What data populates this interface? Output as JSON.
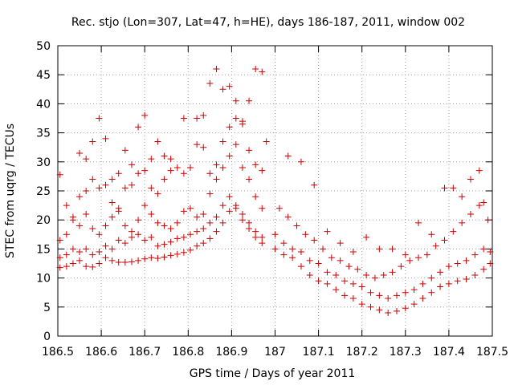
{
  "chart_data": {
    "type": "scatter",
    "title": "Rec. stjo (Lon=307, Lat=47, h=HE), days 186-187, 2011, window 002",
    "xlabel": "GPS time / Days of year 2011",
    "ylabel": "STEC from uqrg / TECUs",
    "xlim": [
      186.5,
      187.5
    ],
    "ylim": [
      0,
      50
    ],
    "xticks": [
      "186.5",
      "186.6",
      "186.7",
      "186.8",
      "186.9",
      "187",
      "187.1",
      "187.2",
      "187.3",
      "187.4",
      "187.5"
    ],
    "yticks": [
      "0",
      "5",
      "10",
      "15",
      "20",
      "25",
      "30",
      "35",
      "40",
      "45",
      "50"
    ],
    "grid": true,
    "legend": "none",
    "marker": "+",
    "color": "#cc0000",
    "points": [
      [
        186.505,
        11.8
      ],
      [
        186.52,
        12.0
      ],
      [
        186.535,
        12.5
      ],
      [
        186.55,
        13.0
      ],
      [
        186.565,
        12.0
      ],
      [
        186.58,
        11.9
      ],
      [
        186.595,
        12.5
      ],
      [
        186.61,
        13.5
      ],
      [
        186.625,
        13.0
      ],
      [
        186.64,
        12.7
      ],
      [
        186.655,
        12.7
      ],
      [
        186.67,
        12.8
      ],
      [
        186.685,
        13.0
      ],
      [
        186.7,
        13.3
      ],
      [
        186.715,
        13.5
      ],
      [
        186.73,
        13.4
      ],
      [
        186.745,
        13.6
      ],
      [
        186.76,
        13.9
      ],
      [
        186.775,
        14.1
      ],
      [
        186.79,
        14.4
      ],
      [
        186.805,
        14.8
      ],
      [
        186.82,
        15.5
      ],
      [
        186.835,
        16.0
      ],
      [
        186.85,
        16.8
      ],
      [
        186.865,
        18.0
      ],
      [
        186.88,
        19.5
      ],
      [
        186.895,
        21.5
      ],
      [
        186.91,
        22.0
      ],
      [
        186.925,
        20.0
      ],
      [
        186.94,
        18.5
      ],
      [
        186.955,
        17.0
      ],
      [
        186.97,
        16.0
      ],
      [
        186.505,
        13.5
      ],
      [
        186.52,
        14.0
      ],
      [
        186.535,
        15.0
      ],
      [
        186.55,
        14.5
      ],
      [
        186.565,
        15.0
      ],
      [
        186.58,
        14.0
      ],
      [
        186.595,
        14.5
      ],
      [
        186.61,
        15.5
      ],
      [
        186.625,
        15.0
      ],
      [
        186.64,
        16.5
      ],
      [
        186.655,
        16.0
      ],
      [
        186.67,
        17.0
      ],
      [
        186.685,
        17.5
      ],
      [
        186.7,
        16.5
      ],
      [
        186.715,
        17.0
      ],
      [
        186.73,
        15.5
      ],
      [
        186.745,
        15.8
      ],
      [
        186.76,
        16.2
      ],
      [
        186.775,
        16.8
      ],
      [
        186.79,
        17.0
      ],
      [
        186.805,
        17.5
      ],
      [
        186.82,
        18.0
      ],
      [
        186.835,
        18.5
      ],
      [
        186.85,
        19.5
      ],
      [
        186.865,
        20.5
      ],
      [
        186.88,
        22.5
      ],
      [
        186.895,
        24.0
      ],
      [
        186.91,
        22.5
      ],
      [
        186.925,
        21.0
      ],
      [
        186.94,
        19.5
      ],
      [
        186.955,
        18.0
      ],
      [
        186.97,
        17.0
      ],
      [
        186.505,
        16.5
      ],
      [
        186.52,
        17.5
      ],
      [
        186.535,
        20.5
      ],
      [
        186.55,
        19.0
      ],
      [
        186.565,
        21.0
      ],
      [
        186.58,
        18.5
      ],
      [
        186.595,
        17.5
      ],
      [
        186.61,
        19.0
      ],
      [
        186.625,
        20.5
      ],
      [
        186.64,
        21.5
      ],
      [
        186.655,
        19.0
      ],
      [
        186.67,
        18.0
      ],
      [
        186.685,
        20.0
      ],
      [
        186.7,
        22.5
      ],
      [
        186.715,
        21.0
      ],
      [
        186.73,
        19.5
      ],
      [
        186.745,
        19.0
      ],
      [
        186.76,
        18.5
      ],
      [
        186.775,
        19.5
      ],
      [
        186.79,
        21.5
      ],
      [
        186.805,
        22.0
      ],
      [
        186.82,
        20.5
      ],
      [
        186.835,
        21.0
      ],
      [
        186.85,
        24.5
      ],
      [
        186.865,
        27.0
      ],
      [
        186.88,
        29.0
      ],
      [
        186.895,
        31.0
      ],
      [
        186.91,
        33.0
      ],
      [
        186.925,
        29.0
      ],
      [
        186.94,
        27.0
      ],
      [
        186.955,
        24.0
      ],
      [
        186.97,
        22.0
      ],
      [
        186.505,
        27.8
      ],
      [
        186.52,
        22.5
      ],
      [
        186.535,
        20.0
      ],
      [
        186.55,
        24.0
      ],
      [
        186.565,
        25.0
      ],
      [
        186.58,
        27.0
      ],
      [
        186.595,
        25.5
      ],
      [
        186.61,
        26.0
      ],
      [
        186.625,
        23.0
      ],
      [
        186.64,
        22.0
      ],
      [
        186.655,
        25.5
      ],
      [
        186.67,
        26.0
      ],
      [
        186.685,
        28.0
      ],
      [
        186.7,
        28.5
      ],
      [
        186.715,
        25.5
      ],
      [
        186.73,
        24.5
      ],
      [
        186.745,
        27.0
      ],
      [
        186.76,
        28.5
      ],
      [
        186.775,
        29.0
      ],
      [
        186.79,
        28.0
      ],
      [
        186.805,
        29.0
      ],
      [
        186.82,
        33.0
      ],
      [
        186.835,
        32.5
      ],
      [
        186.85,
        28.0
      ],
      [
        186.865,
        29.5
      ],
      [
        186.88,
        33.5
      ],
      [
        186.895,
        36.0
      ],
      [
        186.91,
        37.5
      ],
      [
        186.925,
        36.5
      ],
      [
        186.94,
        32.0
      ],
      [
        186.955,
        29.5
      ],
      [
        186.97,
        28.5
      ],
      [
        186.55,
        31.5
      ],
      [
        186.565,
        30.5
      ],
      [
        186.58,
        33.5
      ],
      [
        186.595,
        37.5
      ],
      [
        186.61,
        34.0
      ],
      [
        186.625,
        27.0
      ],
      [
        186.64,
        28.0
      ],
      [
        186.655,
        32.0
      ],
      [
        186.67,
        29.5
      ],
      [
        186.685,
        36.0
      ],
      [
        186.7,
        38.0
      ],
      [
        186.715,
        30.5
      ],
      [
        186.73,
        33.5
      ],
      [
        186.745,
        31.0
      ],
      [
        186.76,
        30.5
      ],
      [
        186.79,
        37.5
      ],
      [
        186.82,
        37.5
      ],
      [
        186.835,
        38.0
      ],
      [
        186.85,
        43.5
      ],
      [
        186.865,
        46.0
      ],
      [
        186.88,
        42.5
      ],
      [
        186.895,
        43.0
      ],
      [
        186.91,
        40.5
      ],
      [
        186.925,
        37.0
      ],
      [
        186.94,
        40.5
      ],
      [
        186.955,
        46.0
      ],
      [
        186.97,
        45.5
      ],
      [
        186.98,
        33.5
      ],
      [
        187.0,
        15.0
      ],
      [
        187.02,
        14.0
      ],
      [
        187.04,
        13.5
      ],
      [
        187.06,
        12.0
      ],
      [
        187.08,
        10.5
      ],
      [
        187.1,
        9.5
      ],
      [
        187.12,
        9.0
      ],
      [
        187.14,
        8.0
      ],
      [
        187.16,
        7.0
      ],
      [
        187.18,
        6.5
      ],
      [
        187.2,
        5.5
      ],
      [
        187.22,
        5.0
      ],
      [
        187.24,
        4.5
      ],
      [
        187.26,
        4.0
      ],
      [
        187.28,
        4.3
      ],
      [
        187.3,
        4.8
      ],
      [
        187.32,
        5.5
      ],
      [
        187.34,
        6.5
      ],
      [
        187.36,
        7.5
      ],
      [
        187.38,
        8.5
      ],
      [
        187.4,
        9.0
      ],
      [
        187.42,
        9.5
      ],
      [
        187.44,
        9.8
      ],
      [
        187.46,
        10.5
      ],
      [
        187.48,
        11.5
      ],
      [
        187.495,
        12.5
      ],
      [
        187.0,
        17.5
      ],
      [
        187.02,
        16.0
      ],
      [
        187.04,
        15.0
      ],
      [
        187.06,
        14.5
      ],
      [
        187.08,
        13.0
      ],
      [
        187.1,
        12.5
      ],
      [
        187.12,
        11.0
      ],
      [
        187.14,
        10.5
      ],
      [
        187.16,
        9.5
      ],
      [
        187.18,
        9.0
      ],
      [
        187.2,
        8.5
      ],
      [
        187.22,
        7.5
      ],
      [
        187.24,
        7.0
      ],
      [
        187.26,
        6.5
      ],
      [
        187.28,
        7.0
      ],
      [
        187.3,
        7.5
      ],
      [
        187.32,
        8.0
      ],
      [
        187.34,
        9.0
      ],
      [
        187.36,
        10.0
      ],
      [
        187.38,
        11.0
      ],
      [
        187.4,
        12.0
      ],
      [
        187.42,
        12.5
      ],
      [
        187.44,
        13.0
      ],
      [
        187.46,
        14.0
      ],
      [
        187.48,
        15.0
      ],
      [
        187.495,
        14.5
      ],
      [
        187.01,
        22.0
      ],
      [
        187.03,
        20.5
      ],
      [
        187.05,
        19.0
      ],
      [
        187.07,
        17.5
      ],
      [
        187.09,
        16.5
      ],
      [
        187.11,
        15.0
      ],
      [
        187.13,
        13.5
      ],
      [
        187.15,
        13.0
      ],
      [
        187.17,
        12.0
      ],
      [
        187.19,
        11.5
      ],
      [
        187.21,
        10.5
      ],
      [
        187.23,
        10.0
      ],
      [
        187.25,
        10.5
      ],
      [
        187.27,
        11.0
      ],
      [
        187.29,
        12.0
      ],
      [
        187.31,
        13.0
      ],
      [
        187.33,
        13.5
      ],
      [
        187.35,
        14.0
      ],
      [
        187.37,
        15.5
      ],
      [
        187.39,
        16.5
      ],
      [
        187.41,
        18.0
      ],
      [
        187.43,
        19.5
      ],
      [
        187.45,
        21.0
      ],
      [
        187.47,
        22.5
      ],
      [
        187.49,
        20.0
      ],
      [
        187.03,
        31.0
      ],
      [
        187.06,
        30.0
      ],
      [
        187.09,
        26.0
      ],
      [
        187.12,
        18.0
      ],
      [
        187.15,
        16.0
      ],
      [
        187.18,
        14.5
      ],
      [
        187.21,
        17.0
      ],
      [
        187.24,
        15.0
      ],
      [
        187.27,
        15.0
      ],
      [
        187.3,
        14.0
      ],
      [
        187.33,
        19.5
      ],
      [
        187.36,
        17.5
      ],
      [
        187.39,
        25.5
      ],
      [
        187.41,
        25.5
      ],
      [
        187.43,
        24.0
      ],
      [
        187.45,
        27.0
      ],
      [
        187.47,
        28.5
      ],
      [
        187.48,
        23.0
      ]
    ]
  }
}
